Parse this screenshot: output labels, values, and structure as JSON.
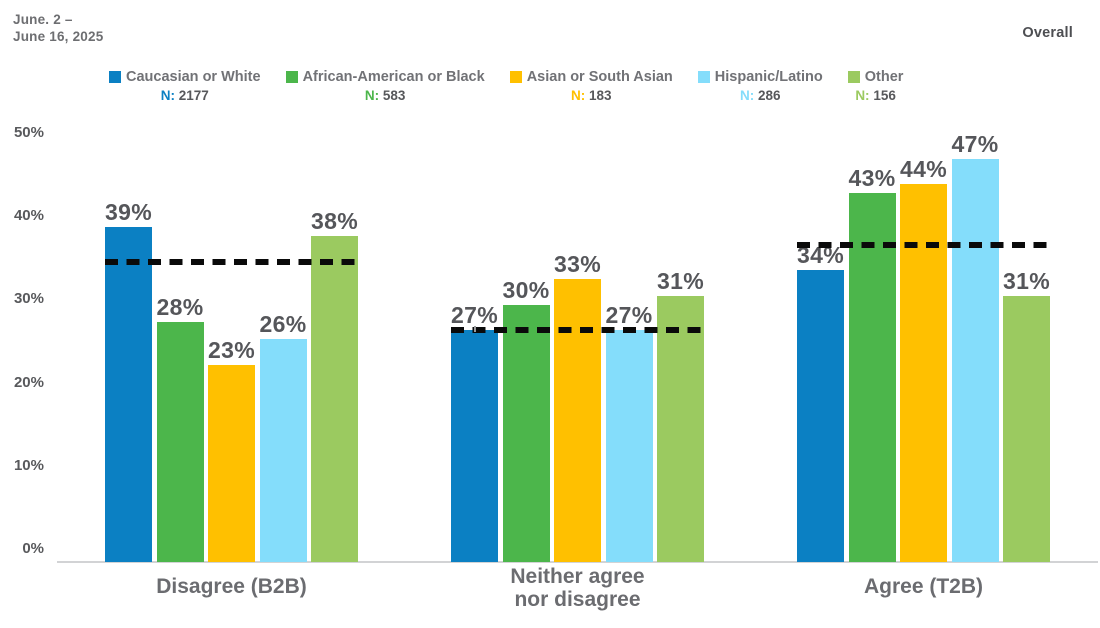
{
  "header": {
    "date_line1": "June. 2 –",
    "date_line2": "June 16, 2025",
    "overall_label": "Overall"
  },
  "chart_data": {
    "type": "bar",
    "title": "",
    "xlabel": "",
    "ylabel": "",
    "categories": [
      "Disagree (B2B)",
      "Neither agree\nnor disagree",
      "Agree (T2B)"
    ],
    "series": [
      {
        "name": "Caucasian or White",
        "n": "2177",
        "color": "#0B80C3",
        "values": [
          39,
          27,
          34
        ]
      },
      {
        "name": "African-American or Black",
        "n": "583",
        "color": "#4CB64B",
        "values": [
          28,
          30,
          43
        ]
      },
      {
        "name": "Asian or South Asian",
        "n": "183",
        "color": "#FFC000",
        "values": [
          23,
          33,
          44
        ]
      },
      {
        "name": "Hispanic/Latino",
        "n": "286",
        "color": "#84DDFB",
        "values": [
          26,
          27,
          47
        ]
      },
      {
        "name": "Other",
        "n": "156",
        "color": "#9BCA60",
        "values": [
          38,
          31,
          31
        ]
      }
    ],
    "n_prefix": "N:",
    "value_suffix": "%",
    "overall_line": {
      "label": "Overall",
      "style": "black-dashed",
      "values": [
        35,
        27,
        37
      ]
    },
    "y_ticks": [
      {
        "label": "0%",
        "value": 0
      },
      {
        "label": "10%",
        "value": 10
      },
      {
        "label": "20%",
        "value": 20
      },
      {
        "label": "30%",
        "value": 30
      },
      {
        "label": "40%",
        "value": 40
      },
      {
        "label": "50%",
        "value": 50
      }
    ],
    "ylim": [
      0,
      50
    ],
    "grid": false,
    "legend_position": "top",
    "label_leader_tick": {
      "category_index": 1,
      "series_index": 0
    }
  }
}
